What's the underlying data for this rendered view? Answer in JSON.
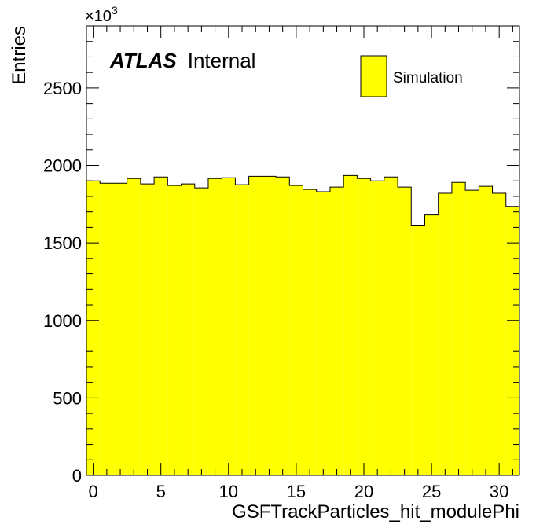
{
  "chart_data": {
    "type": "bar",
    "histogram": true,
    "xlabel": "GSFTrackParticles_hit_modulePhi",
    "ylabel": "Entries",
    "y_multiplier_label": "×10",
    "y_multiplier_exponent": "3",
    "xlim": [
      -0.5,
      31.5
    ],
    "ylim": [
      0,
      2900
    ],
    "x_ticks": [
      0,
      5,
      10,
      15,
      20,
      25,
      30
    ],
    "x_tick_labels": [
      "0",
      "5",
      "10",
      "15",
      "20",
      "25",
      "30"
    ],
    "y_ticks": [
      0,
      500,
      1000,
      1500,
      2000,
      2500
    ],
    "y_tick_labels": [
      "0",
      "500",
      "1000",
      "1500",
      "2000",
      "2500"
    ],
    "x": [
      0,
      1,
      2,
      3,
      4,
      5,
      6,
      7,
      8,
      9,
      10,
      11,
      12,
      13,
      14,
      15,
      16,
      17,
      18,
      19,
      20,
      21,
      22,
      23,
      24,
      25,
      26,
      27,
      28,
      29,
      30,
      31
    ],
    "series": [
      {
        "name": "Simulation",
        "color": "#ffff00",
        "values": [
          1900,
          1885,
          1885,
          1915,
          1880,
          1925,
          1870,
          1880,
          1855,
          1915,
          1920,
          1875,
          1930,
          1930,
          1925,
          1870,
          1845,
          1830,
          1860,
          1935,
          1915,
          1900,
          1925,
          1860,
          1615,
          1680,
          1820,
          1890,
          1840,
          1865,
          1820,
          1735
        ]
      }
    ],
    "annotation_bold": "ATLAS",
    "annotation_plain": "Internal",
    "legend_position": "top-right",
    "grid": false
  }
}
